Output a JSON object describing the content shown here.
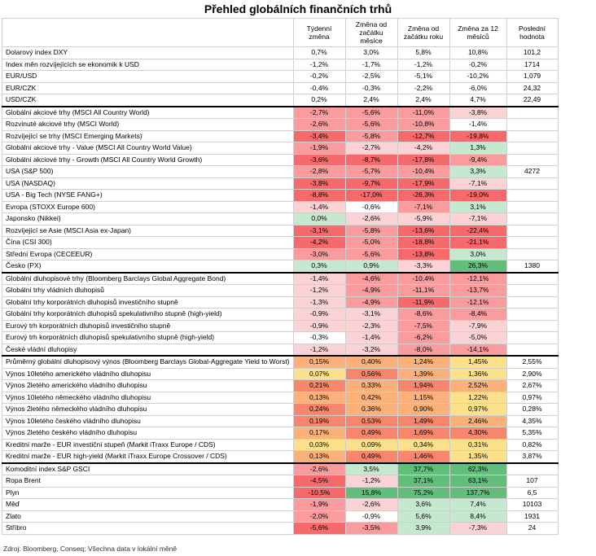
{
  "title": "Přehled globálních finančních trhů",
  "columns": [
    "",
    "Týdenní změna",
    "Změna od začátku měsíce",
    "Změna od začátku roku",
    "Změna za 12 měsíců",
    "Poslední hodnota"
  ],
  "rows": [
    {
      "name": "Dolarový index DXY",
      "cells": [
        "0,7%",
        "3,0%",
        "5,8%",
        "10,8%"
      ],
      "last": "101,2",
      "group_start": true
    },
    {
      "name": "Index měn rozvíjejících se ekonomik k USD",
      "cells": [
        "-1,2%",
        "-1,7%",
        "-1,2%",
        "-0,2%"
      ],
      "last": "1714"
    },
    {
      "name": "EUR/USD",
      "cells": [
        "-0,2%",
        "-2,5%",
        "-5,1%",
        "-10,2%"
      ],
      "last": "1,079"
    },
    {
      "name": "EUR/CZK",
      "cells": [
        "-0,4%",
        "-0,3%",
        "-2,2%",
        "-6,0%"
      ],
      "last": "24,32"
    },
    {
      "name": "USD/CZK",
      "cells": [
        "0,2%",
        "2,4%",
        "2,4%",
        "4,7%"
      ],
      "last": "22,49"
    },
    {
      "name": "Globální akciové trhy (MSCI All Country World)",
      "cells": [
        "-2,7%",
        "-5,6%",
        "-11,0%",
        "-3,8%"
      ],
      "last": "",
      "group_start": true
    },
    {
      "name": "Rozvinuté akciové trhy (MSCI World)",
      "cells": [
        "-2,6%",
        "-5,6%",
        "-10,8%",
        "-1,4%"
      ],
      "last": ""
    },
    {
      "name": "Rozvíjející se trhy (MSCI Emerging Markets)",
      "cells": [
        "-3,4%",
        "-5,8%",
        "-12,7%",
        "-19,8%"
      ],
      "last": ""
    },
    {
      "name": "Globální akciové trhy - Value (MSCI All Country World Value)",
      "cells": [
        "-1,9%",
        "-2,7%",
        "-4,2%",
        "1,3%"
      ],
      "last": ""
    },
    {
      "name": "Globální akciové trhy - Growth (MSCI All Country World Growth)",
      "cells": [
        "-3,6%",
        "-8,7%",
        "-17,8%",
        "-9,4%"
      ],
      "last": ""
    },
    {
      "name": "USA (S&P 500)",
      "cells": [
        "-2,8%",
        "-5,7%",
        "-10,4%",
        "3,3%"
      ],
      "last": "4272"
    },
    {
      "name": "USA (NASDAQ)",
      "cells": [
        "-3,8%",
        "-9,7%",
        "-17,9%",
        "-7,1%"
      ],
      "last": ""
    },
    {
      "name": "USA - Big Tech (NYSE FANG+)",
      "cells": [
        "-8,8%",
        "-17,0%",
        "-26,3%",
        "-19,0%"
      ],
      "last": ""
    },
    {
      "name": "Evropa (STOXX Europe 600)",
      "cells": [
        "-1,4%",
        "-0,6%",
        "-7,1%",
        "3,1%"
      ],
      "last": ""
    },
    {
      "name": "Japonsko (Nikkei)",
      "cells": [
        "0,0%",
        "-2,6%",
        "-5,9%",
        "-7,1%"
      ],
      "last": ""
    },
    {
      "name": "Rozvíjející se Asie (MSCI Asia ex-Japan)",
      "cells": [
        "-3,1%",
        "-5,8%",
        "-13,6%",
        "-22,4%"
      ],
      "last": ""
    },
    {
      "name": "Čína (CSI 300)",
      "cells": [
        "-4,2%",
        "-5,0%",
        "-18,8%",
        "-21,1%"
      ],
      "last": ""
    },
    {
      "name": "Střední Evropa (CECEEUR)",
      "cells": [
        "-3,0%",
        "-5,6%",
        "-13,8%",
        "3,0%"
      ],
      "last": ""
    },
    {
      "name": "Česko (PX)",
      "cells": [
        "0,3%",
        "0,9%",
        "-3,3%",
        "26,3%"
      ],
      "last": "1380"
    },
    {
      "name": "Globální dluhopisové trhy (Bloomberg Barclays Global Aggregate Bond)",
      "cells": [
        "-1,4%",
        "-4,6%",
        "-10,4%",
        "-12,1%"
      ],
      "last": "",
      "group_start": true
    },
    {
      "name": "Globální trhy vládních dluhopisů",
      "cells": [
        "-1,2%",
        "-4,9%",
        "-11,1%",
        "-13,7%"
      ],
      "last": ""
    },
    {
      "name": "Globální trhy korporátních dluhopisů investičního stupně",
      "cells": [
        "-1,3%",
        "-4,9%",
        "-11,9%",
        "-12,1%"
      ],
      "last": ""
    },
    {
      "name": "Globální trhy korporátních dluhopisů spekulativního stupně (high-yield)",
      "cells": [
        "-0,9%",
        "-3,1%",
        "-8,6%",
        "-8,4%"
      ],
      "last": ""
    },
    {
      "name": "Eurový trh korporátních dluhopisů investičního stupně",
      "cells": [
        "-0,9%",
        "-2,3%",
        "-7,5%",
        "-7,9%"
      ],
      "last": ""
    },
    {
      "name": "Eurový trh korporátních dluhopisů spekulativního stupně (high-yield)",
      "cells": [
        "-0,3%",
        "-1,4%",
        "-6,2%",
        "-5,0%"
      ],
      "last": ""
    },
    {
      "name": "České vládní dluhopisy",
      "cells": [
        "-1,2%",
        "-3,2%",
        "-8,0%",
        "-14,1%"
      ],
      "last": ""
    },
    {
      "name": "Průměrný globální dluhopisový výnos (Bloomberg Barclays Global-Aggregate Yield to Worst)",
      "cells": [
        "0,15%",
        "0,40%",
        "1,24%",
        "1,45%"
      ],
      "last": "2,55%",
      "group_start": true
    },
    {
      "name": "Výnos 10letého amerického vládního dluhopisu",
      "cells": [
        "0,07%",
        "0,56%",
        "1,39%",
        "1,36%"
      ],
      "last": "2,90%"
    },
    {
      "name": "Výnos 2letého amerického vládního dluhopisu",
      "cells": [
        "0,21%",
        "0,33%",
        "1,94%",
        "2,52%"
      ],
      "last": "2,67%"
    },
    {
      "name": "Výnos 10letého německého vládního dluhopisu",
      "cells": [
        "0,13%",
        "0,42%",
        "1,15%",
        "1,22%"
      ],
      "last": "0,97%"
    },
    {
      "name": "Výnos 2letého německého vládního dluhopisu",
      "cells": [
        "0,24%",
        "0,36%",
        "0,90%",
        "0,97%"
      ],
      "last": "0,28%"
    },
    {
      "name": "Výnos 10letého českého vládního dluhopisu",
      "cells": [
        "0,19%",
        "0,53%",
        "1,49%",
        "2,46%"
      ],
      "last": "4,35%"
    },
    {
      "name": "Výnos 2letého českého vládního dluhopisu",
      "cells": [
        "0,17%",
        "0,49%",
        "1,69%",
        "4,30%"
      ],
      "last": "5,35%"
    },
    {
      "name": "Kreditní marže - EUR investiční stupeň (Markit iTraxx Europe / CDS)",
      "cells": [
        "0,03%",
        "0,09%",
        "0,34%",
        "0,31%"
      ],
      "last": "0,82%"
    },
    {
      "name": "Kreditní marže - EUR high-yield (Markit iTraxx Europe Crossover / CDS)",
      "cells": [
        "0,13%",
        "0,49%",
        "1,46%",
        "1,35%"
      ],
      "last": "3,87%"
    },
    {
      "name": "Komoditní index S&P GSCI",
      "cells": [
        "-2,6%",
        "3,5%",
        "37,7%",
        "62,3%"
      ],
      "last": "",
      "group_start": true
    },
    {
      "name": "Ropa Brent",
      "cells": [
        "-4,5%",
        "-1,2%",
        "37,1%",
        "63,1%"
      ],
      "last": "107"
    },
    {
      "name": "Plyn",
      "cells": [
        "-10,5%",
        "15,8%",
        "75,2%",
        "137,7%"
      ],
      "last": "6,5"
    },
    {
      "name": "Měď",
      "cells": [
        "-1,9%",
        "-2,6%",
        "3,6%",
        "7,4%"
      ],
      "last": "10103"
    },
    {
      "name": "Zlato",
      "cells": [
        "-2,0%",
        "-0,9%",
        "5,6%",
        "8,4%"
      ],
      "last": "1931"
    },
    {
      "name": "Stříbro",
      "cells": [
        "-5,6%",
        "-3,5%",
        "3,9%",
        "-7,3%"
      ],
      "last": "24"
    }
  ],
  "colors": {
    "strong_red": "#f8696b",
    "mid_red": "#fa9c9e",
    "light_red": "#fcd3d4",
    "strong_green": "#63be7b",
    "light_green": "#c6e8cf",
    "yield_low": "#fde18a",
    "yield_mid": "#fbb27a",
    "yield_high": "#f8866d"
  },
  "footer": "Zdroj: Bloomberg, Conseq; Všechna data v lokální měně"
}
